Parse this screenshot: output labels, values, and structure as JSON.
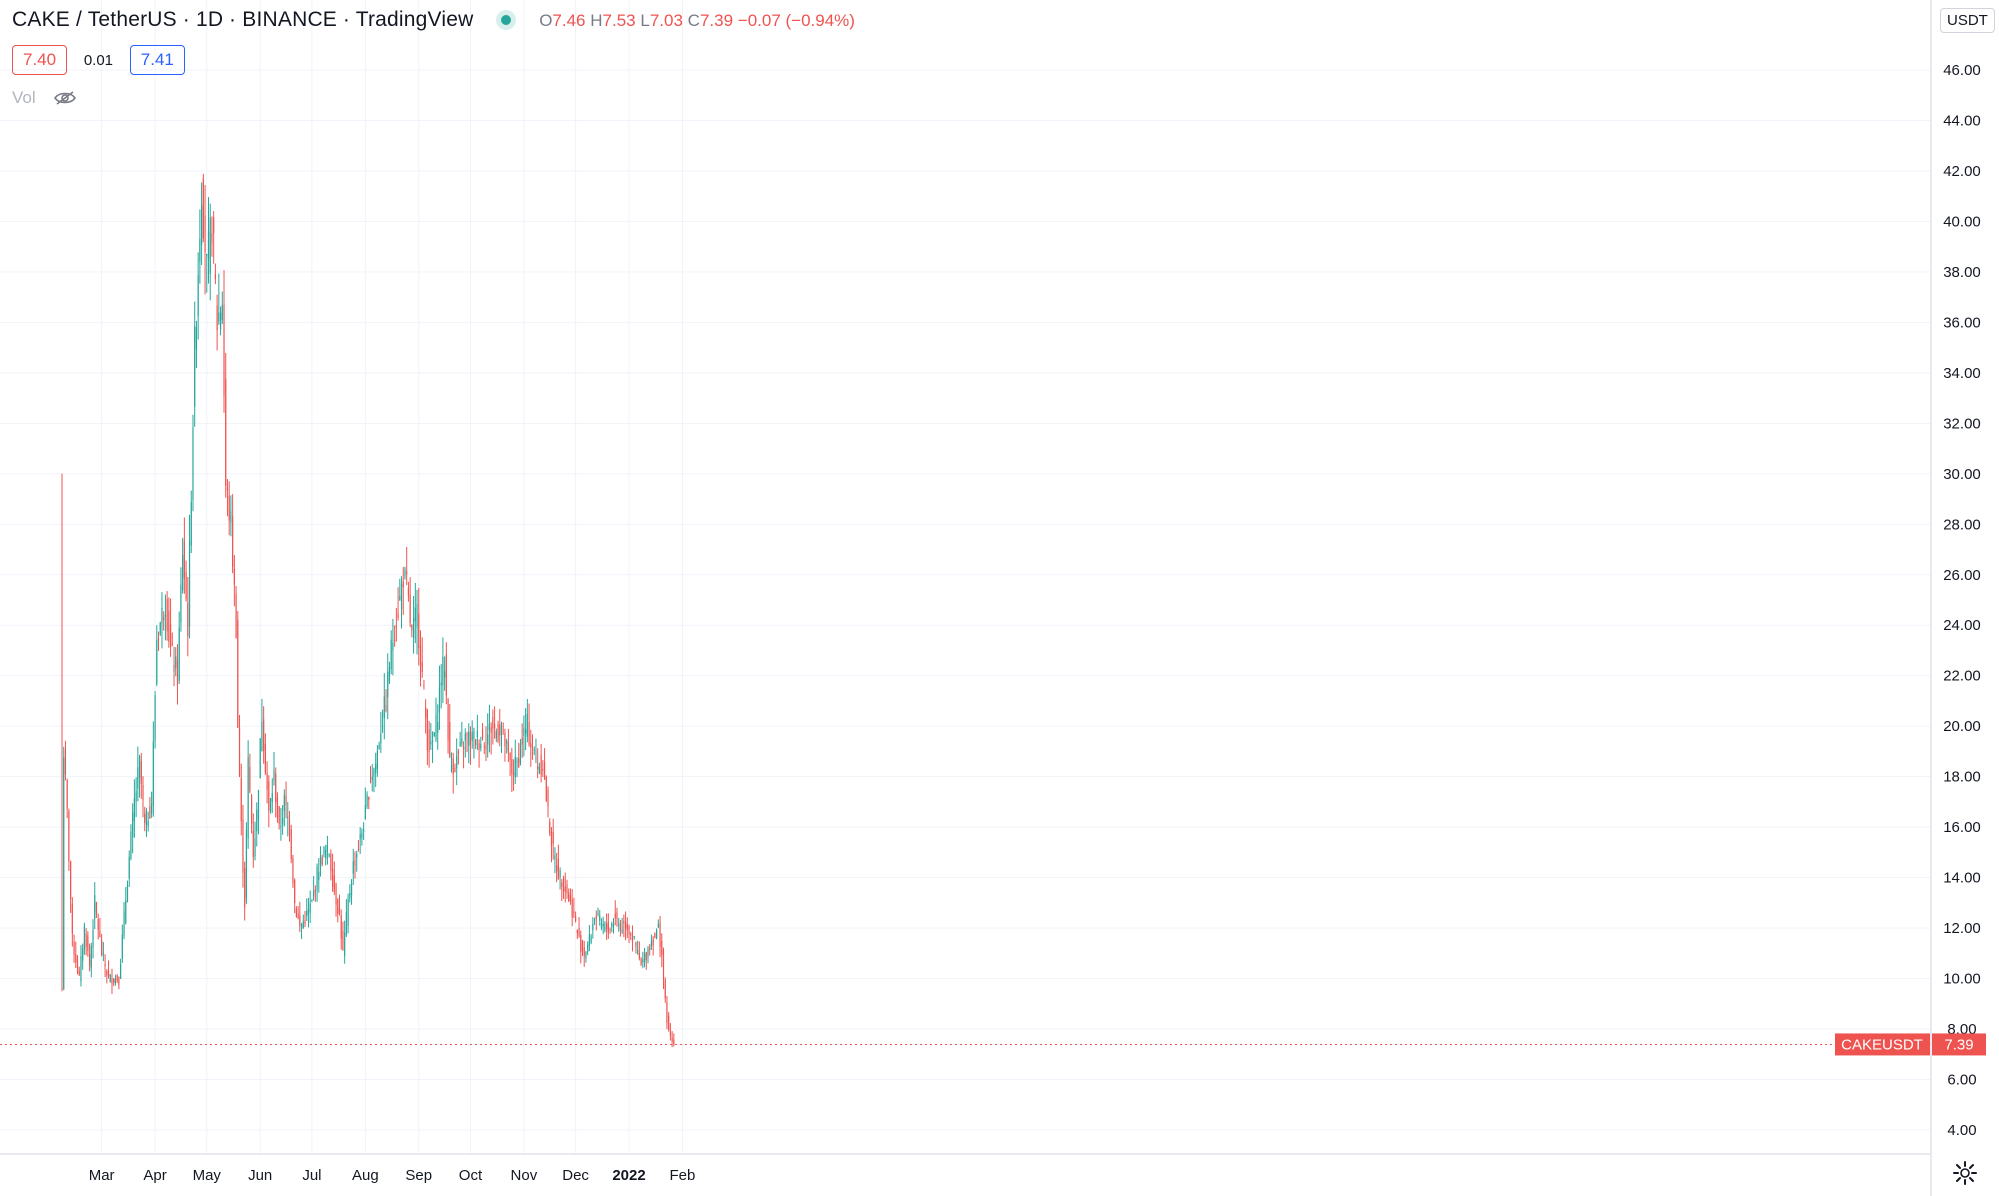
{
  "header": {
    "symbol": "CAKE / TetherUS",
    "interval": "1D",
    "exchange": "BINANCE",
    "source": "TradingView",
    "ohlc": {
      "open": "7.46",
      "high": "7.53",
      "low": "7.03",
      "close": "7.39",
      "change": "−0.07 (−0.94%)"
    },
    "bid": "7.40",
    "spread": "0.01",
    "ask": "7.41",
    "volume_label": "Vol"
  },
  "currency": "USDT",
  "last_price_label": "CAKEUSDT",
  "last_price_value": "7.39",
  "colors": {
    "up": "#26a69a",
    "down": "#ef5350",
    "grid": "#f0f3fa",
    "axis": "#e0e3eb"
  },
  "icons": {
    "visibility": "eye-off-icon",
    "settings": "gear-icon",
    "status": "market-open-dot-icon"
  },
  "chart_data": {
    "type": "candlestick",
    "ylim": [
      3,
      47.5
    ],
    "ytick_labels": [
      "4.00",
      "6.00",
      "8.00",
      "10.00",
      "12.00",
      "14.00",
      "16.00",
      "18.00",
      "20.00",
      "22.00",
      "24.00",
      "26.00",
      "28.00",
      "30.00",
      "32.00",
      "34.00",
      "36.00",
      "38.00",
      "40.00",
      "42.00",
      "44.00",
      "46.00"
    ],
    "xtick_labels": [
      "Mar",
      "Apr",
      "May",
      "Jun",
      "Jul",
      "Aug",
      "Sep",
      "Oct",
      "Nov",
      "Dec",
      "2022",
      "Feb"
    ],
    "last_price": 7.39,
    "grid": true,
    "keypoints": [
      [
        0,
        9.6
      ],
      [
        1,
        19
      ],
      [
        3,
        16.5
      ],
      [
        6,
        11.5
      ],
      [
        10,
        10
      ],
      [
        13,
        12
      ],
      [
        16,
        10.5
      ],
      [
        19,
        13
      ],
      [
        23,
        11
      ],
      [
        27,
        10
      ],
      [
        33,
        10
      ],
      [
        38,
        14
      ],
      [
        42,
        17
      ],
      [
        45,
        18.5
      ],
      [
        48,
        16
      ],
      [
        52,
        17
      ],
      [
        55,
        23.5
      ],
      [
        60,
        25
      ],
      [
        63,
        23
      ],
      [
        67,
        22
      ],
      [
        70,
        27
      ],
      [
        73,
        24
      ],
      [
        77,
        35
      ],
      [
        81,
        41.5
      ],
      [
        84,
        38
      ],
      [
        87,
        40
      ],
      [
        90,
        36
      ],
      [
        93,
        37
      ],
      [
        95,
        29.5
      ],
      [
        98,
        28
      ],
      [
        101,
        24
      ],
      [
        102,
        20
      ],
      [
        104,
        16
      ],
      [
        106,
        13
      ],
      [
        108,
        18.5
      ],
      [
        111,
        15
      ],
      [
        113,
        16.5
      ],
      [
        116,
        20.5
      ],
      [
        120,
        16.5
      ],
      [
        123,
        18
      ],
      [
        126,
        15.8
      ],
      [
        129,
        17
      ],
      [
        132,
        16
      ],
      [
        135,
        13
      ],
      [
        138,
        12
      ],
      [
        142,
        12.5
      ],
      [
        145,
        13
      ],
      [
        149,
        14.5
      ],
      [
        152,
        15
      ],
      [
        155,
        15
      ],
      [
        158,
        13.5
      ],
      [
        161,
        12.5
      ],
      [
        163,
        11
      ],
      [
        166,
        13
      ],
      [
        169,
        14.5
      ],
      [
        173,
        15.5
      ],
      [
        176,
        16.5
      ],
      [
        179,
        18
      ],
      [
        182,
        18.5
      ],
      [
        185,
        20
      ],
      [
        188,
        21
      ],
      [
        190,
        22.5
      ],
      [
        193,
        24
      ],
      [
        196,
        25
      ],
      [
        198,
        26
      ],
      [
        200,
        25.5
      ],
      [
        203,
        23.5
      ],
      [
        206,
        24.5
      ],
      [
        209,
        22
      ],
      [
        212,
        19.5
      ],
      [
        214,
        19
      ],
      [
        217,
        20
      ],
      [
        220,
        22
      ],
      [
        222,
        22.5
      ],
      [
        225,
        18.5
      ],
      [
        228,
        18.5
      ],
      [
        231,
        19
      ],
      [
        234,
        19.5
      ],
      [
        237,
        19.5
      ],
      [
        240,
        19.5
      ],
      [
        243,
        19.5
      ],
      [
        246,
        19.5
      ],
      [
        249,
        20
      ],
      [
        252,
        19.8
      ],
      [
        255,
        20
      ],
      [
        258,
        19
      ],
      [
        261,
        18.2
      ],
      [
        264,
        18.5
      ],
      [
        267,
        19.5
      ],
      [
        270,
        20
      ],
      [
        273,
        19
      ],
      [
        276,
        18.5
      ],
      [
        279,
        18.5
      ],
      [
        282,
        16.5
      ],
      [
        285,
        15
      ],
      [
        288,
        14.2
      ],
      [
        291,
        13.8
      ],
      [
        294,
        13.2
      ],
      [
        297,
        12.5
      ],
      [
        300,
        11.5
      ],
      [
        303,
        11
      ],
      [
        306,
        11.5
      ],
      [
        309,
        12.5
      ],
      [
        312,
        12.2
      ],
      [
        315,
        12
      ],
      [
        318,
        12
      ],
      [
        321,
        12.5
      ],
      [
        324,
        12
      ],
      [
        327,
        12.2
      ],
      [
        330,
        11.8
      ],
      [
        333,
        11.2
      ],
      [
        336,
        10.5
      ],
      [
        339,
        11
      ],
      [
        342,
        11.5
      ],
      [
        345,
        11.8
      ],
      [
        346,
        12
      ],
      [
        348,
        11
      ],
      [
        350,
        9
      ],
      [
        352,
        7.8
      ],
      [
        354,
        7.5
      ],
      [
        355,
        7.39
      ]
    ]
  }
}
